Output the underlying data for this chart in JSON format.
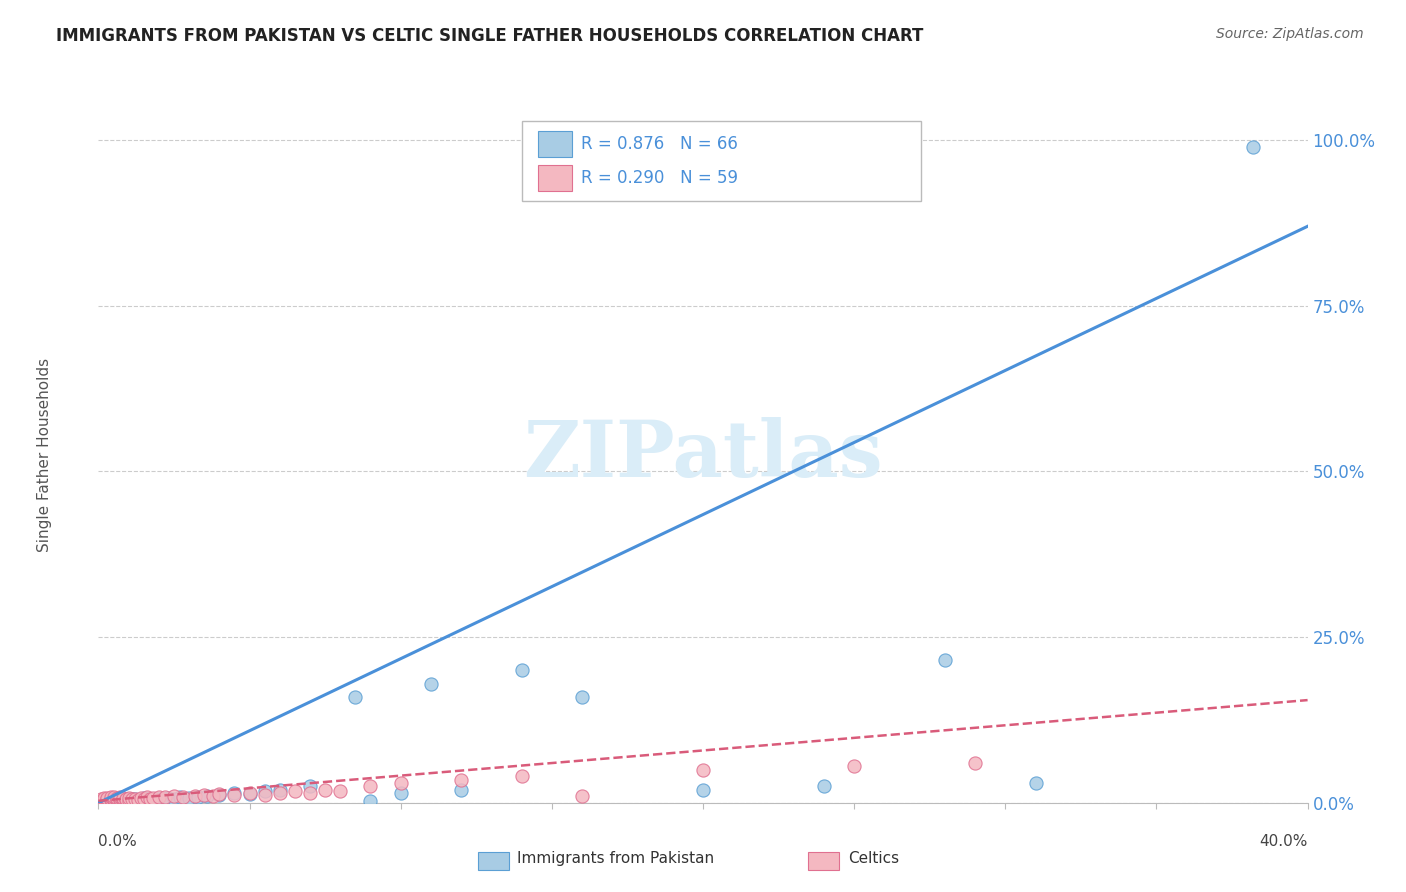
{
  "title": "IMMIGRANTS FROM PAKISTAN VS CELTIC SINGLE FATHER HOUSEHOLDS CORRELATION CHART",
  "source": "Source: ZipAtlas.com",
  "blue_label": "Immigrants from Pakistan",
  "pink_label": "Celtics",
  "blue_R": "0.876",
  "blue_N": "66",
  "pink_R": "0.290",
  "pink_N": "59",
  "blue_color": "#a8cce4",
  "blue_edge_color": "#5b9fd4",
  "pink_color": "#f4b8c1",
  "pink_edge_color": "#e07090",
  "trend_blue_color": "#4a90d9",
  "trend_pink_color": "#d95b7a",
  "watermark_text": "ZIPatlas",
  "watermark_color": "#daedf8",
  "background_color": "#ffffff",
  "ylabel": "Single Father Households",
  "ytick_labels": [
    "0.0%",
    "25.0%",
    "50.0%",
    "75.0%",
    "100.0%"
  ],
  "ytick_vals": [
    0.0,
    0.25,
    0.5,
    0.75,
    1.0
  ],
  "xlim": [
    0.0,
    0.4
  ],
  "ylim": [
    0.0,
    1.05
  ],
  "blue_trend_x": [
    0.0,
    0.4
  ],
  "blue_trend_y": [
    0.0,
    0.87
  ],
  "pink_trend_x": [
    0.0,
    0.4
  ],
  "pink_trend_y": [
    0.003,
    0.155
  ],
  "blue_scatter_x": [
    0.001,
    0.001,
    0.002,
    0.002,
    0.002,
    0.003,
    0.003,
    0.003,
    0.003,
    0.004,
    0.004,
    0.004,
    0.005,
    0.005,
    0.005,
    0.006,
    0.006,
    0.006,
    0.007,
    0.007,
    0.007,
    0.008,
    0.008,
    0.009,
    0.009,
    0.01,
    0.01,
    0.011,
    0.011,
    0.012,
    0.012,
    0.013,
    0.014,
    0.015,
    0.015,
    0.016,
    0.017,
    0.018,
    0.019,
    0.02,
    0.021,
    0.022,
    0.023,
    0.025,
    0.027,
    0.03,
    0.033,
    0.036,
    0.04,
    0.045,
    0.05,
    0.055,
    0.06,
    0.07,
    0.085,
    0.09,
    0.1,
    0.11,
    0.12,
    0.14,
    0.16,
    0.2,
    0.24,
    0.28,
    0.31,
    0.382
  ],
  "blue_scatter_y": [
    0.002,
    0.003,
    0.002,
    0.003,
    0.004,
    0.002,
    0.003,
    0.004,
    0.005,
    0.002,
    0.003,
    0.004,
    0.002,
    0.003,
    0.005,
    0.002,
    0.003,
    0.004,
    0.002,
    0.003,
    0.005,
    0.002,
    0.004,
    0.002,
    0.004,
    0.002,
    0.005,
    0.003,
    0.005,
    0.003,
    0.006,
    0.003,
    0.004,
    0.003,
    0.007,
    0.004,
    0.005,
    0.004,
    0.006,
    0.005,
    0.006,
    0.005,
    0.007,
    0.006,
    0.008,
    0.007,
    0.008,
    0.01,
    0.012,
    0.015,
    0.013,
    0.018,
    0.02,
    0.025,
    0.16,
    0.003,
    0.015,
    0.18,
    0.02,
    0.2,
    0.16,
    0.02,
    0.025,
    0.215,
    0.03,
    0.99
  ],
  "pink_scatter_x": [
    0.001,
    0.001,
    0.002,
    0.002,
    0.002,
    0.003,
    0.003,
    0.003,
    0.004,
    0.004,
    0.004,
    0.005,
    0.005,
    0.005,
    0.006,
    0.006,
    0.006,
    0.007,
    0.007,
    0.007,
    0.008,
    0.008,
    0.008,
    0.009,
    0.009,
    0.01,
    0.01,
    0.011,
    0.012,
    0.013,
    0.014,
    0.015,
    0.016,
    0.017,
    0.018,
    0.02,
    0.022,
    0.025,
    0.028,
    0.032,
    0.035,
    0.038,
    0.04,
    0.045,
    0.05,
    0.055,
    0.06,
    0.065,
    0.07,
    0.075,
    0.08,
    0.09,
    0.1,
    0.12,
    0.14,
    0.16,
    0.2,
    0.25,
    0.29
  ],
  "pink_scatter_y": [
    0.003,
    0.005,
    0.003,
    0.005,
    0.007,
    0.003,
    0.005,
    0.007,
    0.004,
    0.006,
    0.008,
    0.004,
    0.006,
    0.008,
    0.003,
    0.005,
    0.007,
    0.004,
    0.006,
    0.008,
    0.003,
    0.005,
    0.007,
    0.004,
    0.006,
    0.003,
    0.007,
    0.005,
    0.006,
    0.004,
    0.007,
    0.005,
    0.008,
    0.006,
    0.007,
    0.008,
    0.009,
    0.01,
    0.008,
    0.01,
    0.012,
    0.01,
    0.013,
    0.012,
    0.015,
    0.012,
    0.015,
    0.018,
    0.015,
    0.02,
    0.018,
    0.025,
    0.03,
    0.035,
    0.04,
    0.01,
    0.05,
    0.055,
    0.06
  ]
}
